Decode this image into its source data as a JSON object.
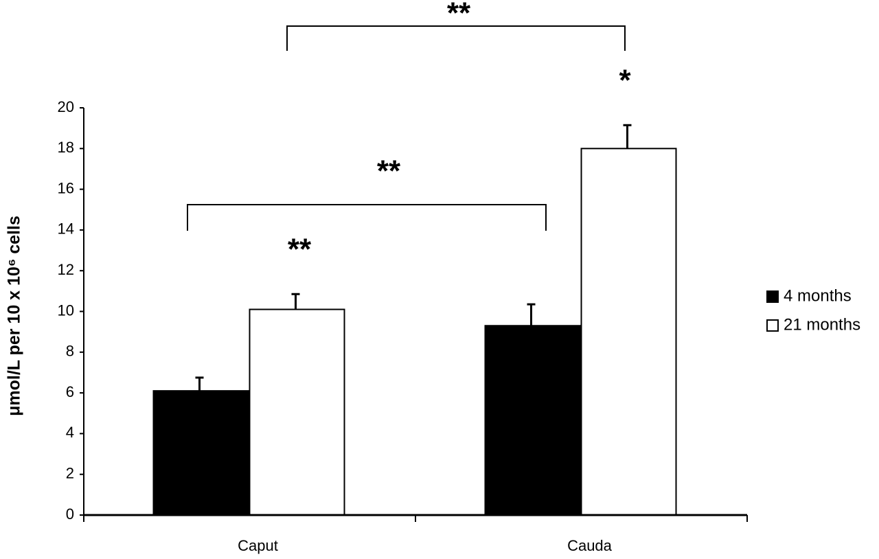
{
  "chart_data": {
    "type": "bar",
    "y_label": "μmol/L per 10 x 10⁶ cells",
    "categories": [
      "Caput",
      "Cauda"
    ],
    "series": [
      {
        "name": "4 months",
        "color": "#000000",
        "values": [
          6.1,
          9.3
        ],
        "errors": [
          0.65,
          1.05
        ]
      },
      {
        "name": "21 months",
        "color": "#ffffff",
        "values": [
          10.1,
          18.0
        ],
        "errors": [
          0.75,
          1.15
        ]
      }
    ],
    "ylim": [
      0,
      20
    ],
    "yticks": [
      0,
      2,
      4,
      6,
      8,
      10,
      12,
      14,
      16,
      18,
      20
    ],
    "legend": "right",
    "annotations": [
      {
        "text": "**"
      },
      {
        "text": "*"
      },
      {
        "text": "**"
      },
      {
        "text": "**"
      }
    ]
  }
}
